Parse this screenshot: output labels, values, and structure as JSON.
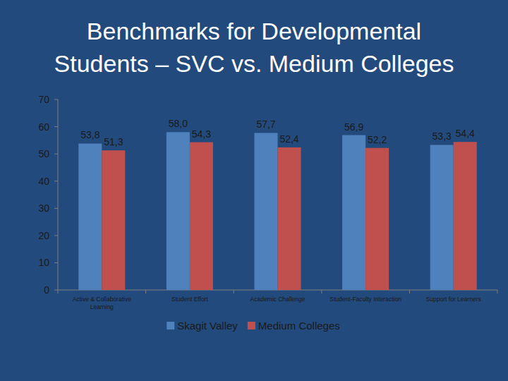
{
  "chart_data": {
    "type": "bar",
    "title": "Benchmarks for Developmental Students – SVC vs. Medium Colleges",
    "categories": [
      "Active & Collaborative Learning",
      "Student Effort",
      "Academic Challenge",
      "Student-Faculty Interaction",
      "Support for Learners"
    ],
    "series": [
      {
        "name": "Skagit Valley",
        "color": "#4F81BD",
        "values": [
          53.8,
          58.0,
          57.7,
          56.9,
          53.3
        ],
        "value_labels": [
          "53,8",
          "58,0",
          "57,7",
          "56,9",
          "53,3"
        ]
      },
      {
        "name": "Medium Colleges",
        "color": "#C0504D",
        "values": [
          51.3,
          54.3,
          52.4,
          52.2,
          54.4
        ],
        "value_labels": [
          "51,3",
          "54,3",
          "52,4",
          "52,2",
          "54,4"
        ]
      }
    ],
    "ylim": [
      0,
      70
    ],
    "yticks": [
      0,
      10,
      20,
      30,
      40,
      50,
      60,
      70
    ],
    "grid": false,
    "legend": "bottom",
    "data_labels": true
  }
}
